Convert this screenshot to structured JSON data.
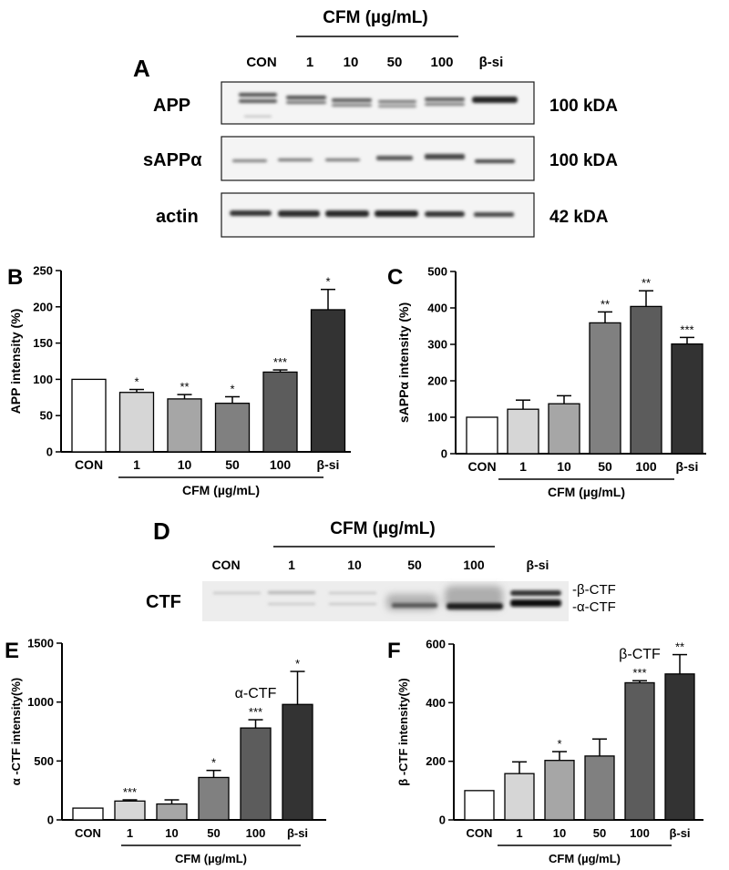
{
  "panel_a": {
    "letter": "A",
    "treatment_label": "CFM (µg/mL)",
    "lanes": [
      "CON",
      "1",
      "10",
      "50",
      "100",
      "β-si"
    ],
    "blots": [
      {
        "name": "APP",
        "size": "100 kDA"
      },
      {
        "name": "sAPPα",
        "size": "100 kDA"
      },
      {
        "name": "actin",
        "size": "42 kDA"
      }
    ]
  },
  "panel_d": {
    "letter": "D",
    "treatment_label": "CFM (µg/mL)",
    "lanes": [
      "CON",
      "1",
      "10",
      "50",
      "100",
      "β-si"
    ],
    "blot_name": "CTF",
    "band_labels": [
      "-β-CTF",
      "-α-CTF"
    ]
  },
  "chart_data": [
    {
      "panel": "B",
      "type": "bar",
      "categories": [
        "CON",
        "1",
        "10",
        "50",
        "100",
        "β-si"
      ],
      "values": [
        100,
        82,
        73,
        67,
        110,
        196
      ],
      "errors": [
        0,
        4,
        6,
        9,
        3,
        28
      ],
      "significance": [
        "",
        "*",
        "**",
        "*",
        "***",
        "*"
      ],
      "ylabel": "APP intensity (%)",
      "xlabel": "CFM (µg/mL)",
      "ylim": [
        0,
        250
      ],
      "yticks": [
        0,
        50,
        100,
        150,
        200,
        250
      ],
      "bar_colors": [
        "#ffffff",
        "#d6d6d6",
        "#a6a6a6",
        "#808080",
        "#5c5c5c",
        "#333333"
      ],
      "annotation": ""
    },
    {
      "panel": "C",
      "type": "bar",
      "categories": [
        "CON",
        "1",
        "10",
        "50",
        "100",
        "β-si"
      ],
      "values": [
        100,
        122,
        137,
        359,
        404,
        301
      ],
      "errors": [
        0,
        25,
        22,
        30,
        43,
        18
      ],
      "significance": [
        "",
        "",
        "",
        "**",
        "**",
        "***"
      ],
      "ylabel": "sAPPα  intensity (%)",
      "xlabel": "CFM (µg/mL)",
      "ylim": [
        0,
        500
      ],
      "yticks": [
        0,
        100,
        200,
        300,
        400,
        500
      ],
      "bar_colors": [
        "#ffffff",
        "#d6d6d6",
        "#a6a6a6",
        "#808080",
        "#5c5c5c",
        "#333333"
      ],
      "annotation": ""
    },
    {
      "panel": "E",
      "type": "bar",
      "categories": [
        "CON",
        "1",
        "10",
        "50",
        "100",
        "β-si"
      ],
      "values": [
        100,
        160,
        135,
        360,
        780,
        980
      ],
      "errors": [
        0,
        10,
        35,
        60,
        70,
        280
      ],
      "significance": [
        "",
        "***",
        "",
        "*",
        "***",
        "*"
      ],
      "ylabel": "α -CTF  intensity(%)",
      "xlabel": "CFM (µg/mL)",
      "ylim": [
        0,
        1500
      ],
      "yticks": [
        0,
        500,
        1000,
        1500
      ],
      "bar_colors": [
        "#ffffff",
        "#d6d6d6",
        "#a6a6a6",
        "#808080",
        "#5c5c5c",
        "#333333"
      ],
      "annotation": "α-CTF"
    },
    {
      "panel": "F",
      "type": "bar",
      "categories": [
        "CON",
        "1",
        "10",
        "50",
        "100",
        "β-si"
      ],
      "values": [
        100,
        158,
        203,
        218,
        468,
        498
      ],
      "errors": [
        0,
        40,
        30,
        58,
        7,
        66
      ],
      "significance": [
        "",
        "",
        "*",
        "",
        "***",
        "**"
      ],
      "ylabel": "β -CTF  intensity(%)",
      "xlabel": "CFM (µg/mL)",
      "ylim": [
        0,
        600
      ],
      "yticks": [
        0,
        200,
        400,
        600
      ],
      "bar_colors": [
        "#ffffff",
        "#d6d6d6",
        "#a6a6a6",
        "#808080",
        "#5c5c5c",
        "#333333"
      ],
      "annotation": "β-CTF"
    }
  ]
}
